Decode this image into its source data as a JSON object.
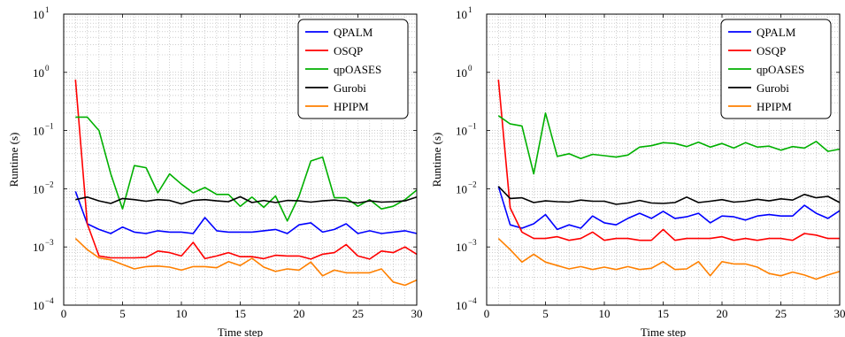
{
  "chart_data": [
    {
      "type": "line",
      "xlabel": "Time step",
      "ylabel": "Runtime (s)",
      "xlim": [
        0,
        30
      ],
      "ylim": [
        0.0001,
        10
      ],
      "yscale": "log",
      "grid": true,
      "legend": "top-right",
      "x_ticks": [
        "0",
        "5",
        "10",
        "15",
        "20",
        "25",
        "30"
      ],
      "y_ticks": [
        {
          "base": "10",
          "exp": "1"
        },
        {
          "base": "10",
          "exp": "0"
        },
        {
          "base": "10",
          "exp": "−1"
        },
        {
          "base": "10",
          "exp": "−2"
        },
        {
          "base": "10",
          "exp": "−3"
        },
        {
          "base": "10",
          "exp": "−4"
        }
      ],
      "x": [
        1,
        2,
        3,
        4,
        5,
        6,
        7,
        8,
        9,
        10,
        11,
        12,
        13,
        14,
        15,
        16,
        17,
        18,
        19,
        20,
        21,
        22,
        23,
        24,
        25,
        26,
        27,
        28,
        29,
        30
      ],
      "series": [
        {
          "name": "QPALM",
          "color": "#0000ff",
          "values": [
            0.009,
            0.0025,
            0.002,
            0.0017,
            0.0022,
            0.0018,
            0.0017,
            0.0019,
            0.0018,
            0.0018,
            0.0017,
            0.0032,
            0.0019,
            0.0018,
            0.0018,
            0.0018,
            0.0019,
            0.002,
            0.0017,
            0.0024,
            0.0026,
            0.0018,
            0.002,
            0.0025,
            0.0017,
            0.0019,
            0.0017,
            0.0018,
            0.0019,
            0.0017
          ]
        },
        {
          "name": "OSQP",
          "color": "#ff0000",
          "values": [
            0.75,
            0.0025,
            0.0007,
            0.00065,
            0.00065,
            0.00065,
            0.00066,
            0.00085,
            0.0008,
            0.0007,
            0.0012,
            0.00063,
            0.0007,
            0.0008,
            0.00068,
            0.00068,
            0.00063,
            0.00072,
            0.0007,
            0.0007,
            0.00062,
            0.00075,
            0.0008,
            0.0011,
            0.0007,
            0.00062,
            0.00085,
            0.0008,
            0.001,
            0.00075
          ]
        },
        {
          "name": "qpOASES",
          "color": "#00b000",
          "values": [
            0.17,
            0.17,
            0.1,
            0.018,
            0.0045,
            0.025,
            0.023,
            0.0085,
            0.018,
            0.012,
            0.0085,
            0.0105,
            0.008,
            0.008,
            0.005,
            0.0072,
            0.0048,
            0.0075,
            0.0028,
            0.0075,
            0.03,
            0.035,
            0.007,
            0.007,
            0.005,
            0.0065,
            0.0045,
            0.005,
            0.0065,
            0.0095
          ]
        },
        {
          "name": "Gurobi",
          "color": "#000000",
          "values": [
            0.0065,
            0.0072,
            0.0062,
            0.0056,
            0.0068,
            0.0065,
            0.0061,
            0.0065,
            0.0063,
            0.0055,
            0.0063,
            0.0065,
            0.0062,
            0.006,
            0.0073,
            0.0058,
            0.0063,
            0.0058,
            0.0063,
            0.0062,
            0.0059,
            0.0062,
            0.0064,
            0.0061,
            0.0057,
            0.0062,
            0.0059,
            0.006,
            0.0062,
            0.0072
          ]
        },
        {
          "name": "HPIPM",
          "color": "#ff8000",
          "values": [
            0.0014,
            0.0009,
            0.00065,
            0.0006,
            0.0005,
            0.00042,
            0.00046,
            0.00047,
            0.00045,
            0.0004,
            0.00046,
            0.00046,
            0.00044,
            0.00056,
            0.00048,
            0.00064,
            0.00045,
            0.00038,
            0.00042,
            0.0004,
            0.00055,
            0.00032,
            0.0004,
            0.00036,
            0.00036,
            0.00036,
            0.00042,
            0.00025,
            0.00022,
            0.00027
          ]
        }
      ]
    },
    {
      "type": "line",
      "xlabel": "Time step",
      "ylabel": "Runtime (s)",
      "xlim": [
        0,
        30
      ],
      "ylim": [
        0.0001,
        10
      ],
      "yscale": "log",
      "grid": true,
      "legend": "top-right",
      "x_ticks": [
        "0",
        "5",
        "10",
        "15",
        "20",
        "25",
        "30"
      ],
      "y_ticks": [
        {
          "base": "10",
          "exp": "1"
        },
        {
          "base": "10",
          "exp": "0"
        },
        {
          "base": "10",
          "exp": "−1"
        },
        {
          "base": "10",
          "exp": "−2"
        },
        {
          "base": "10",
          "exp": "−3"
        },
        {
          "base": "10",
          "exp": "−4"
        }
      ],
      "x": [
        1,
        2,
        3,
        4,
        5,
        6,
        7,
        8,
        9,
        10,
        11,
        12,
        13,
        14,
        15,
        16,
        17,
        18,
        19,
        20,
        21,
        22,
        23,
        24,
        25,
        26,
        27,
        28,
        29,
        30
      ],
      "series": [
        {
          "name": "QPALM",
          "color": "#0000ff",
          "values": [
            0.011,
            0.0024,
            0.0021,
            0.0025,
            0.0036,
            0.002,
            0.0024,
            0.0021,
            0.0034,
            0.0026,
            0.0024,
            0.0031,
            0.0038,
            0.0031,
            0.0041,
            0.0031,
            0.0033,
            0.0038,
            0.0026,
            0.0034,
            0.0033,
            0.0029,
            0.0034,
            0.0036,
            0.0034,
            0.0034,
            0.0052,
            0.0038,
            0.0031,
            0.0042
          ]
        },
        {
          "name": "OSQP",
          "color": "#ff0000",
          "values": [
            0.75,
            0.0047,
            0.0018,
            0.0014,
            0.0014,
            0.0015,
            0.0013,
            0.0014,
            0.0018,
            0.0013,
            0.0014,
            0.0014,
            0.0013,
            0.0013,
            0.002,
            0.0013,
            0.0014,
            0.0014,
            0.0014,
            0.0015,
            0.0013,
            0.0014,
            0.0013,
            0.0014,
            0.0014,
            0.0013,
            0.0017,
            0.0016,
            0.0014,
            0.0014
          ]
        },
        {
          "name": "qpOASES",
          "color": "#00b000",
          "values": [
            0.18,
            0.13,
            0.12,
            0.018,
            0.2,
            0.036,
            0.04,
            0.033,
            0.039,
            0.037,
            0.035,
            0.038,
            0.052,
            0.055,
            0.062,
            0.06,
            0.053,
            0.063,
            0.052,
            0.06,
            0.05,
            0.062,
            0.052,
            0.054,
            0.046,
            0.053,
            0.05,
            0.065,
            0.044,
            0.048
          ]
        },
        {
          "name": "Gurobi",
          "color": "#000000",
          "values": [
            0.011,
            0.0068,
            0.007,
            0.0058,
            0.0062,
            0.006,
            0.0059,
            0.0064,
            0.0061,
            0.0061,
            0.0054,
            0.0057,
            0.0063,
            0.0057,
            0.0056,
            0.0058,
            0.0072,
            0.0058,
            0.0061,
            0.0065,
            0.0059,
            0.0061,
            0.0066,
            0.0062,
            0.0067,
            0.0064,
            0.008,
            0.007,
            0.0074,
            0.0058
          ]
        },
        {
          "name": "HPIPM",
          "color": "#ff8000",
          "values": [
            0.0014,
            0.0009,
            0.00055,
            0.00075,
            0.00055,
            0.00048,
            0.00042,
            0.00046,
            0.00041,
            0.00045,
            0.00041,
            0.00046,
            0.00041,
            0.00043,
            0.00056,
            0.00041,
            0.00042,
            0.00056,
            0.00032,
            0.00056,
            0.00051,
            0.00051,
            0.00045,
            0.00035,
            0.00032,
            0.00037,
            0.00033,
            0.00028,
            0.00033,
            0.00038
          ]
        }
      ]
    }
  ]
}
